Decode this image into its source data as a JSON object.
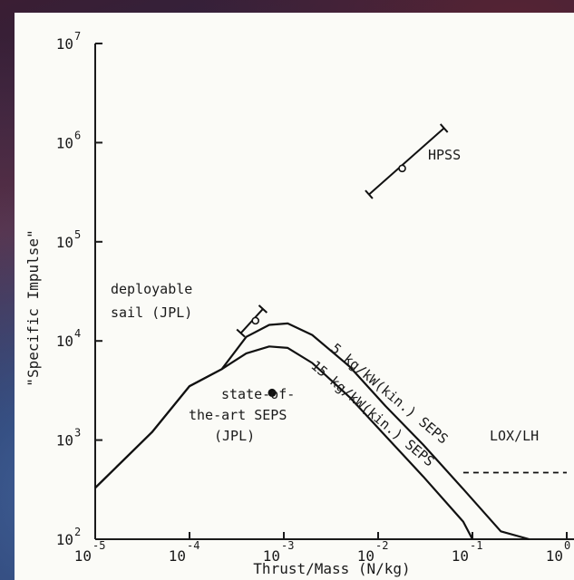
{
  "chart_data": {
    "type": "line",
    "xlabel": "Thrust/Mass (N/kg)",
    "ylabel": "\"Specific Impulse\"",
    "xscale": "log",
    "yscale": "log",
    "xlim": [
      1e-05,
      1
    ],
    "ylim": [
      100,
      10000000
    ],
    "x_ticks": [
      {
        "base": "10",
        "exp": "-5",
        "value": 1e-05
      },
      {
        "base": "10",
        "exp": "-4",
        "value": 0.0001
      },
      {
        "base": "10",
        "exp": "-3",
        "value": 0.001
      },
      {
        "base": "10",
        "exp": "-2",
        "value": 0.01
      },
      {
        "base": "10",
        "exp": "-1",
        "value": 0.1
      },
      {
        "base": "10",
        "exp": "0",
        "value": 1
      }
    ],
    "y_ticks": [
      {
        "base": "10",
        "exp": "2",
        "value": 100
      },
      {
        "base": "10",
        "exp": "3",
        "value": 1000
      },
      {
        "base": "10",
        "exp": "4",
        "value": 10000
      },
      {
        "base": "10",
        "exp": "5",
        "value": 100000
      },
      {
        "base": "10",
        "exp": "6",
        "value": 1000000
      },
      {
        "base": "10",
        "exp": "7",
        "value": 10000000
      }
    ],
    "series": [
      {
        "name": "5 kg/kW(kin.) SEPS",
        "x": [
          1e-05,
          4e-05,
          0.0001,
          0.00022,
          0.0004,
          0.0007,
          0.0011,
          0.002,
          0.005,
          0.012,
          0.03,
          0.08,
          0.2,
          0.4
        ],
        "y": [
          330,
          1200,
          3500,
          5200,
          11000,
          14500,
          15000,
          11500,
          5500,
          2200,
          900,
          320,
          120,
          100
        ]
      },
      {
        "name": "15 kg/kW(kin.) SEPS",
        "x": [
          1e-05,
          4e-05,
          0.0001,
          0.00022,
          0.0004,
          0.0007,
          0.0011,
          0.002,
          0.005,
          0.012,
          0.03,
          0.08,
          0.1
        ],
        "y": [
          330,
          1200,
          3500,
          5200,
          7500,
          8800,
          8500,
          6000,
          2700,
          1100,
          430,
          150,
          100
        ]
      },
      {
        "name": "LOX/LH",
        "x": [
          0.08,
          1
        ],
        "y": [
          470,
          470
        ]
      }
    ],
    "points": [
      {
        "label": "HPSS",
        "x": 0.018,
        "y": 550000,
        "range_x": [
          0.008,
          0.05
        ],
        "range_y": [
          300000,
          1400000
        ]
      },
      {
        "label": "deployable sail (JPL)",
        "x": 0.0005,
        "y": 16000,
        "range_x": [
          0.00035,
          0.0006
        ],
        "range_y": [
          12000,
          21000
        ]
      },
      {
        "label": "state-of-the-art SEPS (JPL)",
        "x": 0.00075,
        "y": 3000
      }
    ],
    "annotations": {
      "hpss": "HPSS",
      "sail_line1": "deployable",
      "sail_line2": "sail (JPL)",
      "soa_line1": "state-of-",
      "soa_line2": "the-art SEPS",
      "soa_line3": "(JPL)",
      "curve5": "5 kg/kW(kin.) SEPS",
      "curve15": "15 kg/kW(kin.) SEPS",
      "lox": "LOX/LH"
    },
    "grid": false,
    "legend": "none"
  }
}
